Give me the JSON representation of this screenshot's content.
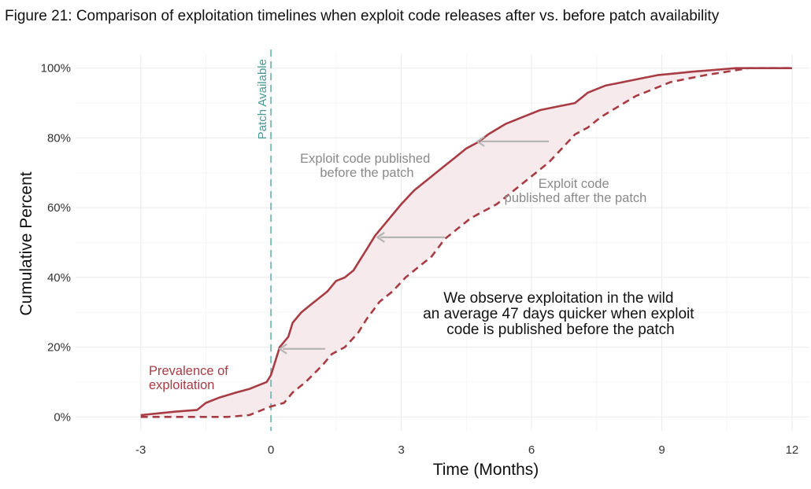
{
  "chart_data": {
    "type": "line",
    "title": "Figure 21: Comparison of exploitation timelines when exploit code releases after vs. before patch availability",
    "xlabel": "Time (Months)",
    "ylabel": "Cumulative Percent",
    "xlim": [
      -4.5,
      12.4
    ],
    "ylim": [
      -4,
      104
    ],
    "x_ticks": [
      -3,
      0,
      3,
      6,
      9,
      12
    ],
    "x_tick_labels": [
      "-3",
      "0",
      "3",
      "6",
      "9",
      "12"
    ],
    "y_ticks": [
      0,
      20,
      40,
      60,
      80,
      100
    ],
    "y_tick_labels": [
      "0%",
      "20%",
      "40%",
      "60%",
      "80%",
      "100%"
    ],
    "grid": true,
    "vline": {
      "x": 0,
      "label": "Patch Available",
      "color": "#7fbcb8"
    },
    "series": [
      {
        "color": "#a83c44",
        "style": "solid",
        "points": [
          [
            -3,
            0.5
          ],
          [
            -2.6,
            1
          ],
          [
            -2.2,
            1.5
          ],
          [
            -1.7,
            2
          ],
          [
            -1.5,
            4
          ],
          [
            -1.2,
            5.5
          ],
          [
            -0.8,
            7
          ],
          [
            -0.5,
            8
          ],
          [
            -0.3,
            9
          ],
          [
            -0.1,
            10
          ],
          [
            0,
            12
          ],
          [
            0.1,
            16
          ],
          [
            0.2,
            20
          ],
          [
            0.4,
            23
          ],
          [
            0.5,
            27
          ],
          [
            0.7,
            30
          ],
          [
            0.9,
            32
          ],
          [
            1.1,
            34
          ],
          [
            1.3,
            36
          ],
          [
            1.5,
            39
          ],
          [
            1.7,
            40
          ],
          [
            1.9,
            42
          ],
          [
            2.1,
            46
          ],
          [
            2.2,
            48
          ],
          [
            2.4,
            52
          ],
          [
            2.6,
            55
          ],
          [
            2.8,
            58
          ],
          [
            3.0,
            61
          ],
          [
            3.3,
            65
          ],
          [
            3.6,
            68
          ],
          [
            3.9,
            71
          ],
          [
            4.2,
            74
          ],
          [
            4.5,
            77
          ],
          [
            4.8,
            79
          ],
          [
            5.0,
            81
          ],
          [
            5.4,
            84
          ],
          [
            5.8,
            86
          ],
          [
            6.2,
            88
          ],
          [
            6.6,
            89
          ],
          [
            7.0,
            90
          ],
          [
            7.3,
            93
          ],
          [
            7.7,
            95
          ],
          [
            8.1,
            96
          ],
          [
            8.5,
            97
          ],
          [
            8.9,
            98
          ],
          [
            9.3,
            98.5
          ],
          [
            9.7,
            99
          ],
          [
            10.2,
            99.5
          ],
          [
            10.7,
            100
          ],
          [
            11.3,
            100
          ],
          [
            12,
            100
          ]
        ]
      },
      {
        "color": "#a83c44",
        "style": "dashed",
        "points": [
          [
            -3,
            0
          ],
          [
            -2,
            0
          ],
          [
            -1,
            0
          ],
          [
            -0.5,
            0.5
          ],
          [
            -0.2,
            2
          ],
          [
            0,
            3
          ],
          [
            0.3,
            4
          ],
          [
            0.5,
            7
          ],
          [
            0.8,
            10
          ],
          [
            1.2,
            15
          ],
          [
            1.4,
            18
          ],
          [
            1.7,
            20
          ],
          [
            2.0,
            24
          ],
          [
            2.2,
            28
          ],
          [
            2.5,
            33
          ],
          [
            2.8,
            36
          ],
          [
            3.1,
            40
          ],
          [
            3.4,
            43
          ],
          [
            3.7,
            46
          ],
          [
            4.0,
            51
          ],
          [
            4.3,
            54
          ],
          [
            4.6,
            57
          ],
          [
            4.9,
            59
          ],
          [
            5.2,
            61
          ],
          [
            5.5,
            64
          ],
          [
            5.8,
            67
          ],
          [
            6.1,
            70
          ],
          [
            6.4,
            73
          ],
          [
            6.7,
            77
          ],
          [
            7.0,
            81
          ],
          [
            7.3,
            83
          ],
          [
            7.6,
            86
          ],
          [
            8.0,
            89
          ],
          [
            8.4,
            92
          ],
          [
            8.8,
            94
          ],
          [
            9.2,
            96
          ],
          [
            9.6,
            97
          ],
          [
            10.0,
            98
          ],
          [
            10.5,
            99
          ],
          [
            11.0,
            100
          ],
          [
            12,
            100
          ]
        ]
      }
    ],
    "annotations": {
      "before_patch": [
        "Exploit code published",
        "before the patch"
      ],
      "after_patch": [
        "Exploit code",
        "published after the patch"
      ],
      "summary": [
        "We observe exploitation in the wild",
        "an average 47 days quicker when exploit",
        "code is published before the patch"
      ],
      "prevalence": [
        "Prevalence of",
        "exploitation"
      ]
    },
    "arrows": [
      {
        "from": [
          4.0,
          51.5
        ],
        "to": [
          2.45,
          51.5
        ]
      },
      {
        "from": [
          6.4,
          79
        ],
        "to": [
          4.75,
          79
        ]
      },
      {
        "from": [
          1.25,
          19.5
        ],
        "to": [
          0.2,
          19.5
        ]
      }
    ],
    "colors": {
      "line": "#a83c44",
      "fill": "#f7eaec",
      "arrow": "#b5b5b5",
      "grid": "#ececec"
    }
  }
}
